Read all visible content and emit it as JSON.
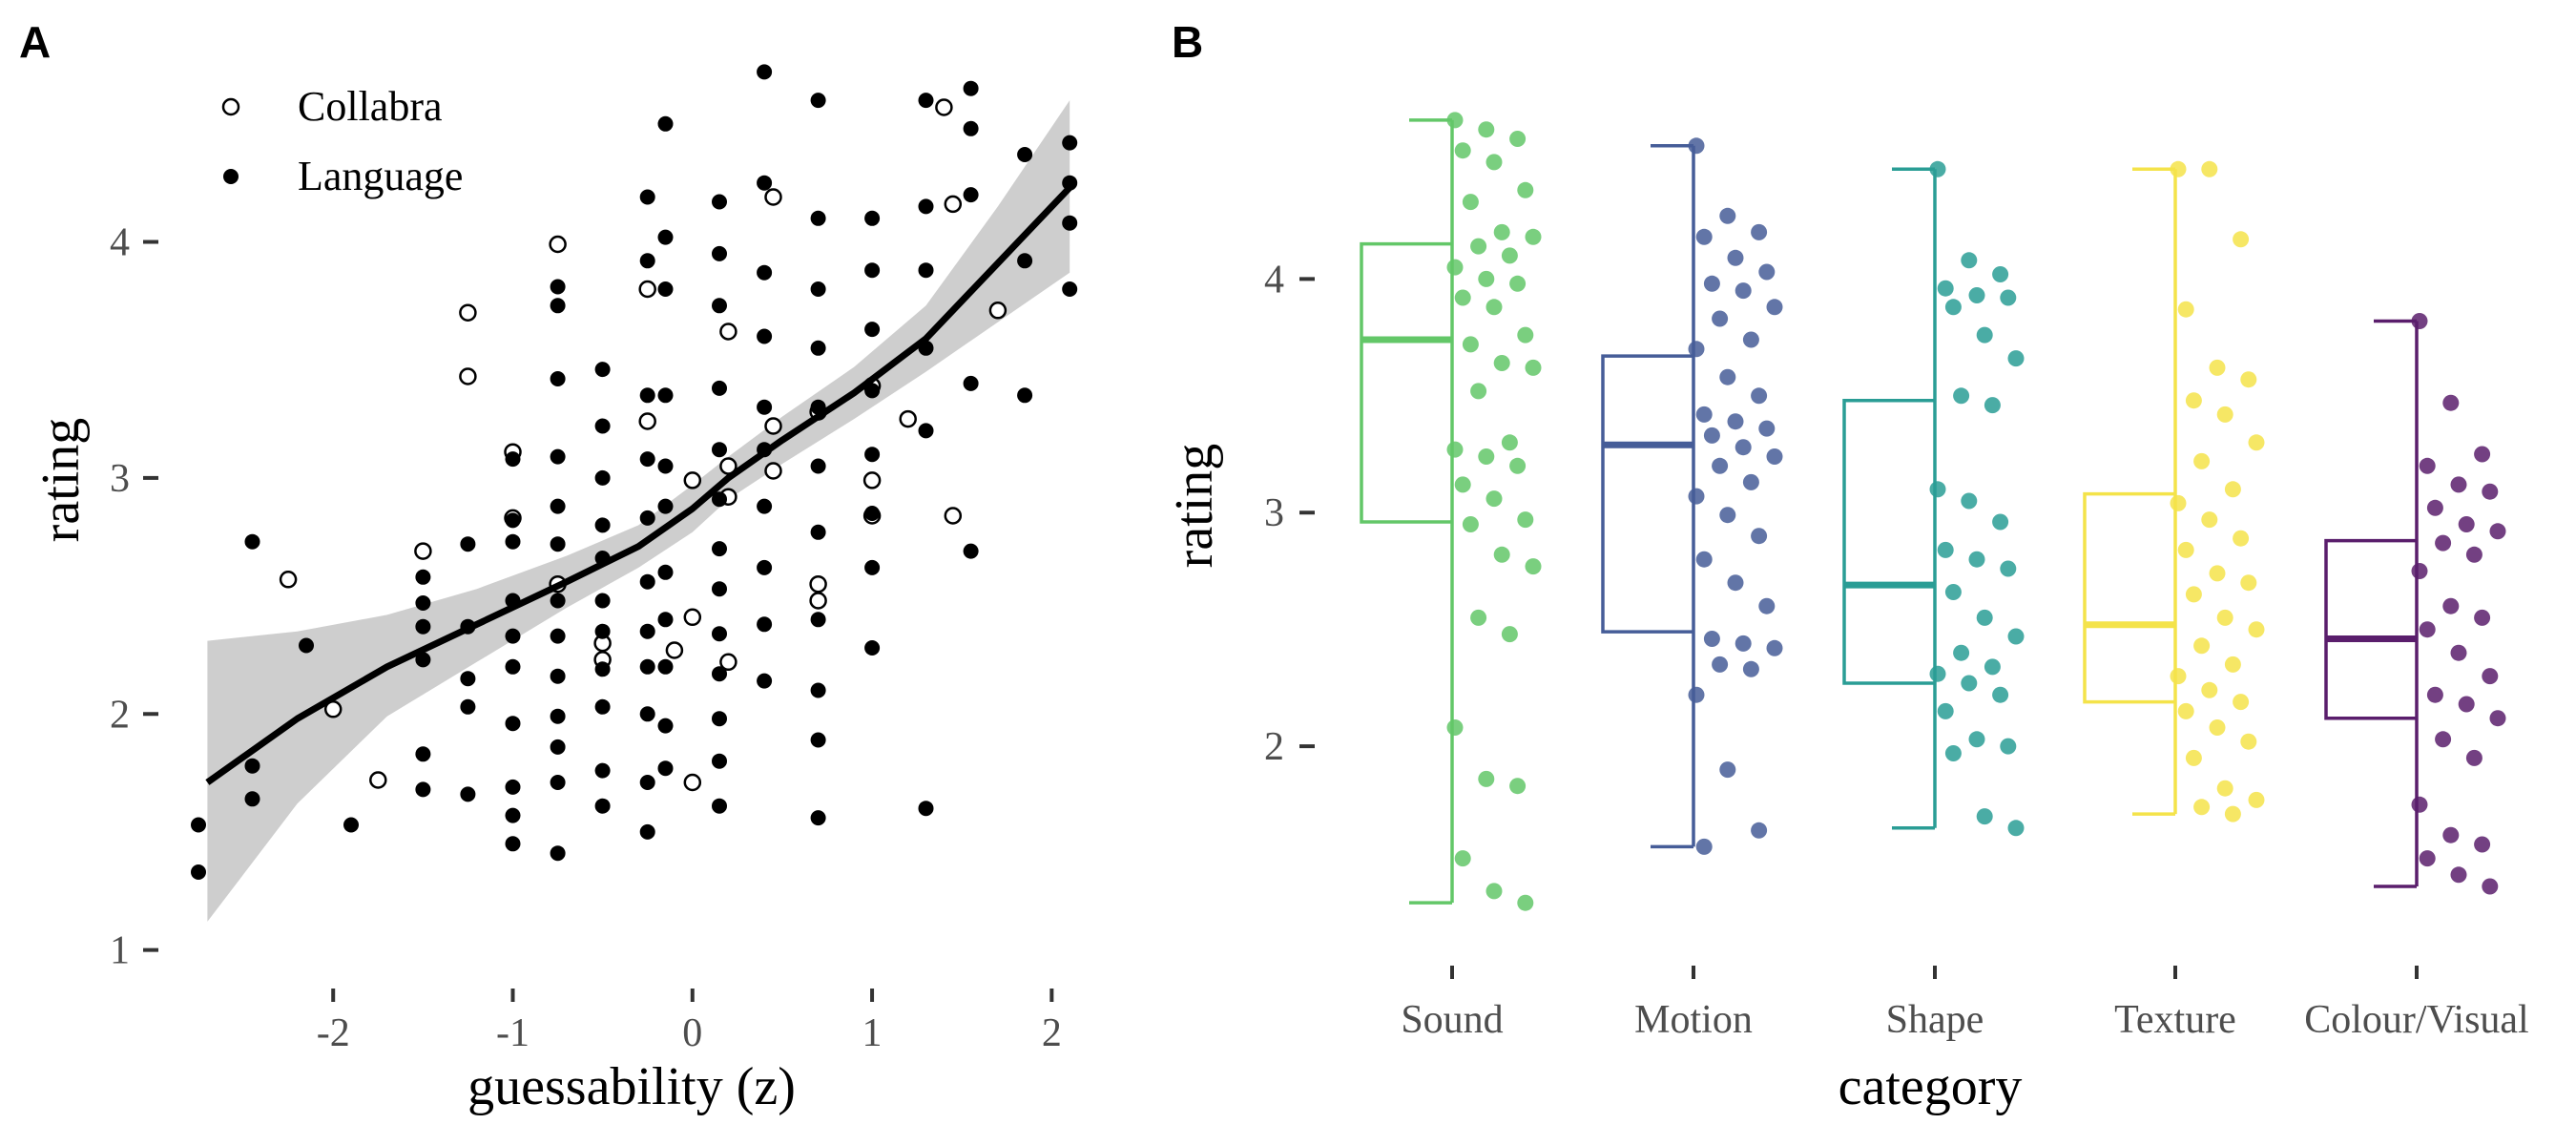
{
  "panels": {
    "a_label": "A",
    "b_label": "B"
  },
  "chart_data": [
    {
      "type": "scatter",
      "panel": "A",
      "title": "",
      "xlabel": "guessability (z)",
      "ylabel": "rating",
      "xlim": [
        -2.75,
        2.2
      ],
      "ylim": [
        0.95,
        4.75
      ],
      "xticks": [
        -2,
        -1,
        0,
        1,
        2
      ],
      "yticks": [
        1,
        2,
        3,
        4
      ],
      "legend_position": "top-left",
      "legend": [
        {
          "name": "Collabra",
          "marker": "open-circle"
        },
        {
          "name": "Language",
          "marker": "filled-circle"
        }
      ],
      "series": [
        {
          "name": "Collabra",
          "points": [
            [
              -2.25,
              2.57
            ],
            [
              -2.0,
              2.02
            ],
            [
              -1.75,
              1.72
            ],
            [
              -1.5,
              2.69
            ],
            [
              -1.25,
              3.7
            ],
            [
              -1.25,
              3.43
            ],
            [
              -1.0,
              3.11
            ],
            [
              -1.0,
              2.83
            ],
            [
              -0.75,
              2.55
            ],
            [
              -0.75,
              3.99
            ],
            [
              -0.5,
              2.3
            ],
            [
              -0.5,
              2.23
            ],
            [
              -0.25,
              3.8
            ],
            [
              -0.25,
              3.24
            ],
            [
              -0.1,
              2.27
            ],
            [
              0.0,
              2.41
            ],
            [
              0.0,
              2.99
            ],
            [
              0.0,
              1.71
            ],
            [
              0.2,
              3.62
            ],
            [
              0.2,
              2.92
            ],
            [
              0.2,
              2.22
            ],
            [
              0.2,
              3.05
            ],
            [
              0.45,
              4.19
            ],
            [
              0.45,
              3.22
            ],
            [
              0.45,
              3.03
            ],
            [
              0.7,
              3.28
            ],
            [
              0.7,
              2.55
            ],
            [
              0.7,
              2.48
            ],
            [
              1.0,
              3.39
            ],
            [
              1.0,
              2.99
            ],
            [
              1.0,
              2.84
            ],
            [
              1.2,
              3.25
            ],
            [
              1.4,
              4.57
            ],
            [
              1.45,
              4.16
            ],
            [
              1.45,
              2.84
            ],
            [
              1.7,
              3.71
            ]
          ]
        },
        {
          "name": "Language",
          "points": [
            [
              -2.75,
              1.33
            ],
            [
              -2.75,
              1.53
            ],
            [
              -2.45,
              2.73
            ],
            [
              -2.45,
              1.78
            ],
            [
              -2.45,
              1.64
            ],
            [
              -2.15,
              2.29
            ],
            [
              -1.9,
              1.53
            ],
            [
              -1.5,
              2.58
            ],
            [
              -1.5,
              2.47
            ],
            [
              -1.5,
              2.37
            ],
            [
              -1.5,
              2.23
            ],
            [
              -1.5,
              1.83
            ],
            [
              -1.5,
              1.68
            ],
            [
              -1.25,
              2.72
            ],
            [
              -1.25,
              2.37
            ],
            [
              -1.25,
              2.15
            ],
            [
              -1.25,
              2.03
            ],
            [
              -1.25,
              1.66
            ],
            [
              -1.0,
              3.08
            ],
            [
              -1.0,
              2.82
            ],
            [
              -1.0,
              2.73
            ],
            [
              -1.0,
              2.48
            ],
            [
              -1.0,
              2.33
            ],
            [
              -1.0,
              2.2
            ],
            [
              -1.0,
              1.96
            ],
            [
              -1.0,
              1.69
            ],
            [
              -1.0,
              1.57
            ],
            [
              -1.0,
              1.45
            ],
            [
              -0.75,
              3.81
            ],
            [
              -0.75,
              3.73
            ],
            [
              -0.75,
              3.42
            ],
            [
              -0.75,
              3.09
            ],
            [
              -0.75,
              2.88
            ],
            [
              -0.75,
              2.72
            ],
            [
              -0.75,
              2.48
            ],
            [
              -0.75,
              2.33
            ],
            [
              -0.75,
              2.16
            ],
            [
              -0.75,
              1.99
            ],
            [
              -0.75,
              1.86
            ],
            [
              -0.75,
              1.71
            ],
            [
              -0.75,
              1.41
            ],
            [
              -0.5,
              3.46
            ],
            [
              -0.5,
              3.22
            ],
            [
              -0.5,
              3.0
            ],
            [
              -0.5,
              2.8
            ],
            [
              -0.5,
              2.66
            ],
            [
              -0.5,
              2.48
            ],
            [
              -0.5,
              2.35
            ],
            [
              -0.5,
              2.19
            ],
            [
              -0.5,
              2.03
            ],
            [
              -0.5,
              1.76
            ],
            [
              -0.5,
              1.61
            ],
            [
              -0.25,
              4.19
            ],
            [
              -0.25,
              3.92
            ],
            [
              -0.25,
              3.35
            ],
            [
              -0.25,
              3.08
            ],
            [
              -0.25,
              2.83
            ],
            [
              -0.25,
              2.56
            ],
            [
              -0.25,
              2.35
            ],
            [
              -0.25,
              2.2
            ],
            [
              -0.25,
              2.0
            ],
            [
              -0.25,
              1.71
            ],
            [
              -0.25,
              1.5
            ],
            [
              -0.15,
              4.5
            ],
            [
              -0.15,
              4.02
            ],
            [
              -0.15,
              3.8
            ],
            [
              -0.15,
              3.35
            ],
            [
              -0.15,
              3.05
            ],
            [
              -0.15,
              2.88
            ],
            [
              -0.15,
              2.6
            ],
            [
              -0.15,
              2.4
            ],
            [
              -0.15,
              2.2
            ],
            [
              -0.15,
              1.95
            ],
            [
              -0.15,
              1.77
            ],
            [
              0.15,
              4.17
            ],
            [
              0.15,
              3.95
            ],
            [
              0.15,
              3.73
            ],
            [
              0.15,
              3.38
            ],
            [
              0.15,
              3.12
            ],
            [
              0.15,
              2.91
            ],
            [
              0.15,
              2.7
            ],
            [
              0.15,
              2.53
            ],
            [
              0.15,
              2.34
            ],
            [
              0.15,
              2.17
            ],
            [
              0.15,
              1.98
            ],
            [
              0.15,
              1.8
            ],
            [
              0.15,
              1.61
            ],
            [
              0.4,
              4.72
            ],
            [
              0.4,
              4.25
            ],
            [
              0.4,
              3.87
            ],
            [
              0.4,
              3.6
            ],
            [
              0.4,
              3.3
            ],
            [
              0.4,
              3.12
            ],
            [
              0.4,
              2.88
            ],
            [
              0.4,
              2.62
            ],
            [
              0.4,
              2.38
            ],
            [
              0.4,
              2.14
            ],
            [
              0.7,
              4.6
            ],
            [
              0.7,
              4.1
            ],
            [
              0.7,
              3.8
            ],
            [
              0.7,
              3.55
            ],
            [
              0.7,
              3.3
            ],
            [
              0.7,
              3.05
            ],
            [
              0.7,
              2.77
            ],
            [
              0.7,
              2.4
            ],
            [
              0.7,
              2.1
            ],
            [
              0.7,
              1.89
            ],
            [
              0.7,
              1.56
            ],
            [
              1.0,
              4.1
            ],
            [
              1.0,
              3.88
            ],
            [
              1.0,
              3.63
            ],
            [
              1.0,
              3.37
            ],
            [
              1.0,
              3.1
            ],
            [
              1.0,
              2.85
            ],
            [
              1.0,
              2.62
            ],
            [
              1.0,
              2.28
            ],
            [
              1.3,
              4.6
            ],
            [
              1.3,
              4.15
            ],
            [
              1.3,
              3.88
            ],
            [
              1.3,
              3.55
            ],
            [
              1.3,
              3.2
            ],
            [
              1.3,
              1.6
            ],
            [
              1.55,
              4.65
            ],
            [
              1.55,
              4.48
            ],
            [
              1.55,
              4.2
            ],
            [
              1.55,
              3.4
            ],
            [
              1.55,
              2.69
            ],
            [
              1.85,
              4.37
            ],
            [
              1.85,
              3.92
            ],
            [
              1.85,
              3.35
            ],
            [
              2.1,
              4.42
            ],
            [
              2.1,
              4.25
            ],
            [
              2.1,
              4.08
            ],
            [
              2.1,
              3.8
            ]
          ]
        }
      ],
      "smooth_fit": {
        "x": [
          -2.7,
          -2.2,
          -1.7,
          -1.2,
          -0.7,
          -0.3,
          0.0,
          0.2,
          0.5,
          0.9,
          1.3,
          1.7,
          2.1
        ],
        "y": [
          1.71,
          1.98,
          2.2,
          2.38,
          2.56,
          2.71,
          2.87,
          3.0,
          3.16,
          3.36,
          3.59,
          3.91,
          4.23
        ],
        "ci_low": [
          1.12,
          1.62,
          1.99,
          2.22,
          2.45,
          2.62,
          2.77,
          2.91,
          3.06,
          3.25,
          3.45,
          3.66,
          3.87
        ],
        "ci_high": [
          2.31,
          2.35,
          2.42,
          2.53,
          2.67,
          2.8,
          2.97,
          3.09,
          3.26,
          3.47,
          3.73,
          4.15,
          4.6
        ]
      }
    },
    {
      "type": "box",
      "panel": "B",
      "title": "",
      "xlabel": "category",
      "ylabel": "rating",
      "ylim": [
        1.2,
        4.9
      ],
      "yticks": [
        2,
        3,
        4
      ],
      "categories": [
        "Sound",
        "Motion",
        "Shape",
        "Texture",
        "Colour/Visual"
      ],
      "boxes": [
        {
          "category": "Sound",
          "color": "#63c768",
          "min": 1.33,
          "q1": 2.96,
          "median": 3.74,
          "q3": 4.15,
          "max": 4.68,
          "points": [
            4.68,
            4.64,
            4.6,
            4.55,
            4.5,
            4.38,
            4.33,
            4.2,
            4.18,
            4.14,
            4.1,
            4.05,
            4.0,
            3.98,
            3.92,
            3.88,
            3.76,
            3.72,
            3.64,
            3.62,
            3.52,
            3.3,
            3.27,
            3.24,
            3.2,
            3.12,
            3.06,
            2.97,
            2.95,
            2.82,
            2.77,
            2.55,
            2.48,
            2.08,
            1.86,
            1.83,
            1.52,
            1.38,
            1.33
          ]
        },
        {
          "category": "Motion",
          "color": "#465d98",
          "min": 1.57,
          "q1": 2.49,
          "median": 3.29,
          "q3": 3.67,
          "max": 4.57,
          "points": [
            4.57,
            4.27,
            4.2,
            4.18,
            4.09,
            4.03,
            3.98,
            3.95,
            3.88,
            3.83,
            3.74,
            3.7,
            3.58,
            3.5,
            3.42,
            3.39,
            3.36,
            3.33,
            3.28,
            3.24,
            3.2,
            3.13,
            3.07,
            2.99,
            2.9,
            2.8,
            2.7,
            2.6,
            2.46,
            2.44,
            2.42,
            2.35,
            2.33,
            2.22,
            1.9,
            1.64,
            1.57
          ]
        },
        {
          "category": "Shape",
          "color": "#2a9d95",
          "min": 1.65,
          "q1": 2.27,
          "median": 2.69,
          "q3": 3.48,
          "max": 4.47,
          "points": [
            4.47,
            4.08,
            4.02,
            3.96,
            3.93,
            3.92,
            3.88,
            3.76,
            3.66,
            3.5,
            3.46,
            3.1,
            3.05,
            2.96,
            2.84,
            2.8,
            2.76,
            2.66,
            2.55,
            2.47,
            2.4,
            2.34,
            2.31,
            2.27,
            2.22,
            2.15,
            2.03,
            2.0,
            1.97,
            1.7,
            1.65
          ]
        },
        {
          "category": "Texture",
          "color": "#f4e34a",
          "min": 1.71,
          "q1": 2.19,
          "median": 2.52,
          "q3": 3.08,
          "max": 4.47,
          "points": [
            4.47,
            4.47,
            4.17,
            3.87,
            3.62,
            3.57,
            3.48,
            3.42,
            3.3,
            3.22,
            3.1,
            3.04,
            2.97,
            2.89,
            2.84,
            2.74,
            2.7,
            2.65,
            2.55,
            2.5,
            2.43,
            2.35,
            2.3,
            2.24,
            2.19,
            2.15,
            2.08,
            2.02,
            1.95,
            1.82,
            1.77,
            1.74,
            1.71
          ]
        },
        {
          "category": "Colour/Visual",
          "color": "#5a1e6c",
          "min": 1.4,
          "q1": 2.12,
          "median": 2.46,
          "q3": 2.88,
          "max": 3.82,
          "points": [
            3.82,
            3.47,
            3.25,
            3.2,
            3.12,
            3.09,
            3.02,
            2.95,
            2.92,
            2.87,
            2.82,
            2.75,
            2.6,
            2.55,
            2.5,
            2.4,
            2.3,
            2.22,
            2.18,
            2.12,
            2.03,
            1.95,
            1.75,
            1.62,
            1.58,
            1.52,
            1.45,
            1.4
          ]
        }
      ]
    }
  ]
}
